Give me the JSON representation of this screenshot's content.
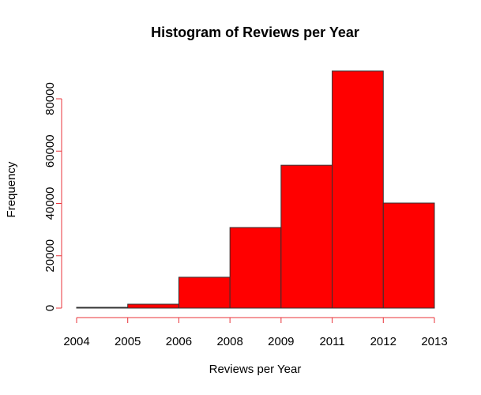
{
  "chart_data": {
    "type": "histogram",
    "title": "Histogram of Reviews per Year",
    "x_label": "Reviews per Year",
    "y_label": "Frequency",
    "bins": [
      0,
      1,
      2,
      3,
      4,
      5,
      6,
      7
    ],
    "values": [
      300,
      1500,
      11800,
      30800,
      54600,
      90600,
      40150
    ],
    "color": "#ff0000",
    "edge_color": "#333333",
    "axis_color": "#e8333a",
    "xlim": [
      0,
      7
    ],
    "xticks": [
      {
        "value": 0,
        "label": "2004"
      },
      {
        "value": 1,
        "label": "2005"
      },
      {
        "value": 2,
        "label": "2006"
      },
      {
        "value": 3,
        "label": "2008"
      },
      {
        "value": 4,
        "label": "2009"
      },
      {
        "value": 5,
        "label": "2011"
      },
      {
        "value": 6,
        "label": "2012"
      },
      {
        "value": 7,
        "label": "2013"
      }
    ],
    "ylim": [
      0,
      90000
    ],
    "yticks": [
      0,
      20000,
      40000,
      60000,
      80000
    ]
  }
}
